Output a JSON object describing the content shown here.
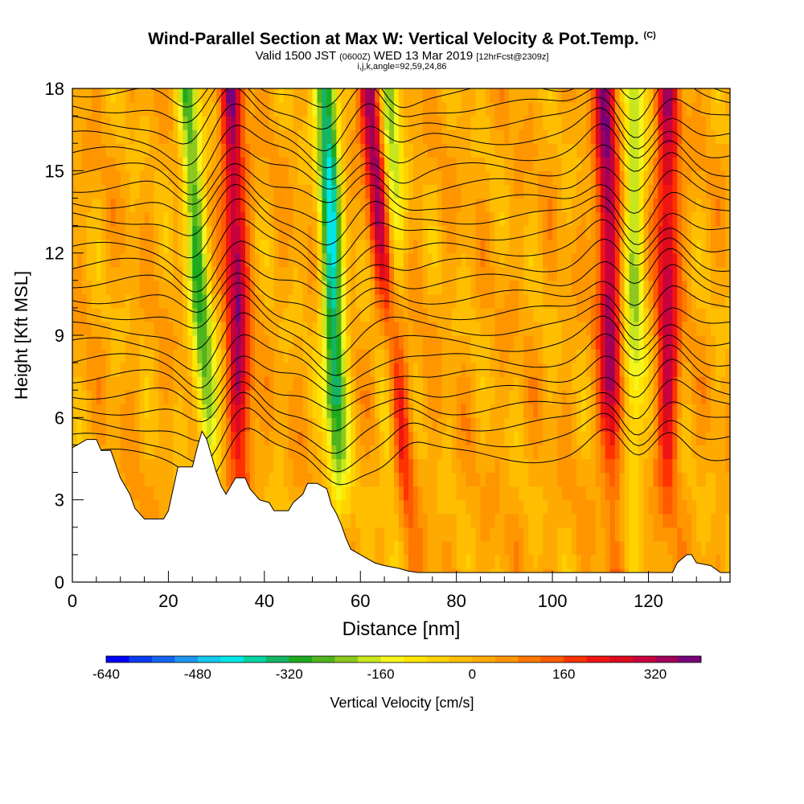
{
  "title": {
    "main": "Wind-Parallel Section at Max W: Vertical Velocity & Pot.Temp.",
    "main_tag": "(C)",
    "valid_pre": "Valid 1500 JST",
    "valid_utc": "(0600Z)",
    "valid_date": "WED 13 Mar 2019",
    "forecast": "[12hrFcst@2309z]",
    "params": "i,j,k,angle=92,59,24,86"
  },
  "chart_data": {
    "type": "heatmap",
    "xlabel": "Distance [nm]",
    "ylabel": "Height [Kft MSL]",
    "xlim": [
      0,
      137
    ],
    "ylim": [
      0,
      18
    ],
    "x_ticks": [
      0,
      20,
      40,
      60,
      80,
      100,
      120
    ],
    "y_ticks": [
      0,
      3,
      6,
      9,
      12,
      15,
      18
    ],
    "colorbar": {
      "label": "Vertical Velocity [cm/s]",
      "min": -640,
      "max": 400,
      "step": 40,
      "tick_values": [
        -640,
        -480,
        -320,
        -160,
        0,
        160,
        320
      ],
      "colors": [
        "#0000ff",
        "#0a3cf0",
        "#1464f0",
        "#1e96f0",
        "#14c8f0",
        "#00e6e6",
        "#00d2a0",
        "#14b464",
        "#1eaa1e",
        "#50b41e",
        "#8cc81e",
        "#c8e61e",
        "#f5f51e",
        "#ffe600",
        "#ffd200",
        "#ffbe00",
        "#ffaa00",
        "#ff9600",
        "#ff7800",
        "#ff5a00",
        "#ff3200",
        "#f01414",
        "#dc0a1e",
        "#c8003c",
        "#a0005a",
        "#780078"
      ]
    },
    "updraft_bands": [
      {
        "x_bottom": 36,
        "x_top": 33,
        "w_max": 320
      },
      {
        "x_bottom": 71,
        "x_top": 62,
        "w_max": 360
      },
      {
        "x_bottom": 113,
        "x_top": 111,
        "w_max": 320
      },
      {
        "x_bottom": 124,
        "x_top": 124,
        "w_max": 280
      }
    ],
    "downdraft_bands": [
      {
        "x_bottom": 30,
        "x_top": 24,
        "w_min": -280
      },
      {
        "x_bottom": 56,
        "x_top": 53,
        "w_min": -400
      },
      {
        "x_bottom": 67,
        "x_top": 66,
        "w_min": -240
      },
      {
        "x_bottom": 117,
        "x_top": 117,
        "w_min": -200
      }
    ],
    "terrain_height_kft": [
      [
        0,
        4.9
      ],
      [
        3,
        5.2
      ],
      [
        5,
        5.2
      ],
      [
        6,
        4.8
      ],
      [
        8,
        4.8
      ],
      [
        9,
        4.3
      ],
      [
        10,
        3.8
      ],
      [
        11,
        3.5
      ],
      [
        12,
        3.2
      ],
      [
        13,
        2.7
      ],
      [
        15,
        2.3
      ],
      [
        19,
        2.3
      ],
      [
        20,
        2.6
      ],
      [
        21,
        3.4
      ],
      [
        22,
        4.2
      ],
      [
        25,
        4.2
      ],
      [
        26,
        4.9
      ],
      [
        27,
        5.5
      ],
      [
        28,
        5.2
      ],
      [
        29,
        4.6
      ],
      [
        30,
        4.0
      ],
      [
        31,
        3.5
      ],
      [
        32,
        3.2
      ],
      [
        33,
        3.5
      ],
      [
        34,
        3.8
      ],
      [
        36,
        3.8
      ],
      [
        37,
        3.4
      ],
      [
        39,
        3.0
      ],
      [
        41,
        2.9
      ],
      [
        42,
        2.6
      ],
      [
        45,
        2.6
      ],
      [
        46,
        2.9
      ],
      [
        48,
        3.2
      ],
      [
        49,
        3.6
      ],
      [
        51,
        3.6
      ],
      [
        53,
        3.4
      ],
      [
        54,
        2.8
      ],
      [
        55,
        2.5
      ],
      [
        56,
        2.1
      ],
      [
        57,
        1.6
      ],
      [
        58,
        1.2
      ],
      [
        60,
        1.0
      ],
      [
        63,
        0.7
      ],
      [
        65,
        0.6
      ],
      [
        68,
        0.5
      ],
      [
        70,
        0.4
      ],
      [
        72,
        0.35
      ],
      [
        125,
        0.35
      ],
      [
        126,
        0.7
      ],
      [
        128,
        1.0
      ],
      [
        129,
        1.0
      ],
      [
        130,
        0.7
      ],
      [
        133,
        0.6
      ],
      [
        135,
        0.35
      ],
      [
        137,
        0.35
      ]
    ]
  }
}
